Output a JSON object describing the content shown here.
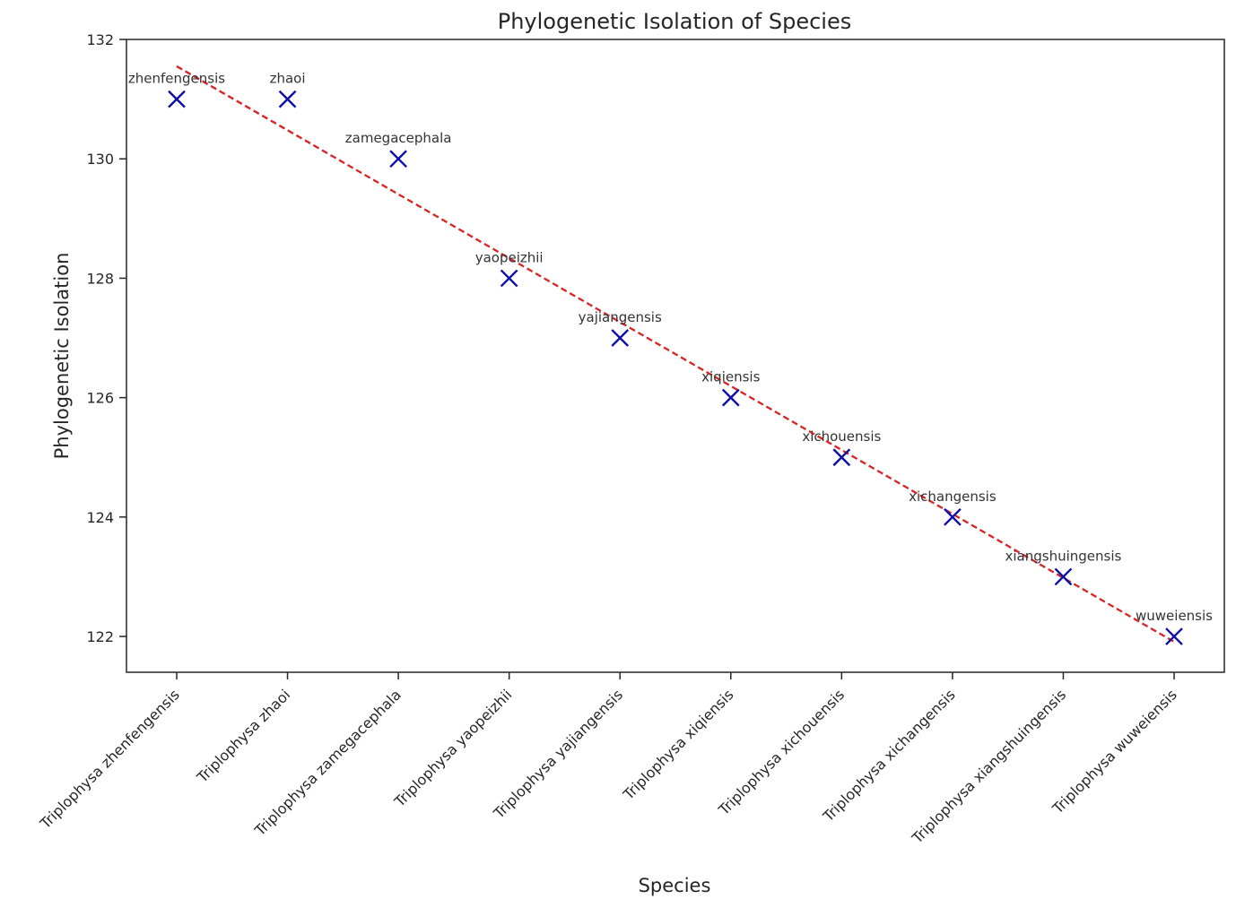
{
  "chart_data": {
    "type": "scatter",
    "title": "Phylogenetic Isolation of Species",
    "xlabel": "Species",
    "ylabel": "Phylogenetic Isolation",
    "ylim": [
      121.4,
      132
    ],
    "yticks": [
      122,
      124,
      126,
      128,
      130,
      132
    ],
    "grid": false,
    "categories": [
      "Triplophysa zhenfengensis",
      "Triplophysa zhaoi",
      "Triplophysa zamegacephala",
      "Triplophysa yaopeizhii",
      "Triplophysa yajiangensis",
      "Triplophysa xiqiensis",
      "Triplophysa xichouensis",
      "Triplophysa xichangensis",
      "Triplophysa xiangshuingensis",
      "Triplophysa wuweiensis"
    ],
    "point_labels": [
      "zhenfengensis",
      "zhaoi",
      "zamegacephala",
      "yaopeizhii",
      "yajiangensis",
      "xiqiensis",
      "xichouensis",
      "xichangensis",
      "xiangshuingensis",
      "wuweiensis"
    ],
    "values": [
      131,
      131,
      130,
      128,
      127,
      126,
      125,
      124,
      123,
      122
    ],
    "trendline": {
      "style": "dashed",
      "start": 131.55,
      "end": 121.91
    },
    "colors": {
      "marker": "#0d0da8",
      "trendline": "#d62728",
      "axes": "#262626"
    },
    "marker": "x-icon"
  }
}
